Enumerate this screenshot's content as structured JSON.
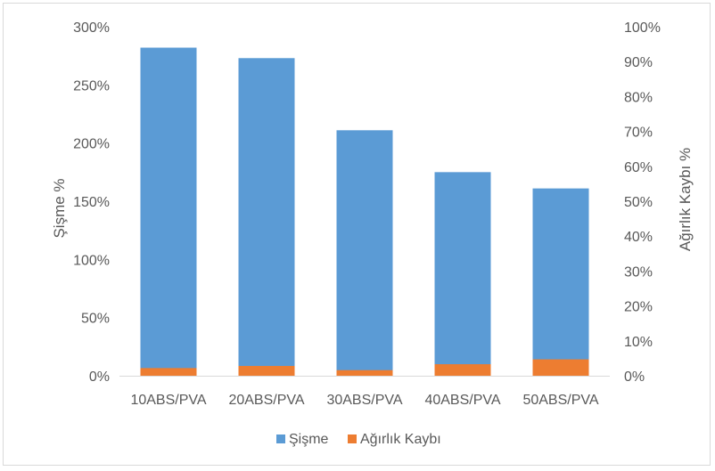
{
  "chart_data": {
    "type": "bar",
    "title": "",
    "categories": [
      "10ABS/PVA",
      "20ABS/PVA",
      "30ABS/PVA",
      "40ABS/PVA",
      "50ABS/PVA"
    ],
    "series": [
      {
        "name": "Şişme",
        "axis": "left",
        "color": "#5b9bd5",
        "values": [
          282,
          273,
          211,
          175,
          161
        ]
      },
      {
        "name": "Ağırlık Kaybı",
        "axis": "right",
        "color": "#ed7d31",
        "values": [
          2.2,
          2.8,
          1.6,
          3.3,
          4.7
        ]
      }
    ],
    "ylabel": "Şişme %",
    "y2label": "Ağırlık Kaybı %",
    "ylim": [
      0,
      300
    ],
    "y2lim": [
      0,
      100
    ],
    "yticks": [
      "0%",
      "50%",
      "100%",
      "150%",
      "200%",
      "250%",
      "300%"
    ],
    "y2ticks": [
      "0%",
      "10%",
      "20%",
      "30%",
      "40%",
      "50%",
      "60%",
      "70%",
      "80%",
      "90%",
      "100%"
    ],
    "grid": false,
    "legend": "bottom"
  }
}
